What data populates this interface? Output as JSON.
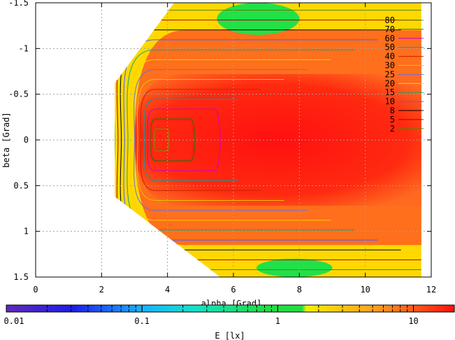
{
  "chart_data": {
    "type": "heatmap",
    "title": "",
    "xlabel": "alpha [Grad]",
    "ylabel": "beta [Grad]",
    "xlim": [
      0,
      12
    ],
    "ylim": [
      -1.5,
      1.5
    ],
    "y_inverted": true,
    "x_ticks": [
      0,
      2,
      4,
      6,
      8,
      10,
      12
    ],
    "x_tick_labels": [
      "0",
      "2",
      "4",
      "6",
      "8",
      "10",
      "12"
    ],
    "y_ticks": [
      -1.5,
      -1,
      -0.5,
      0,
      0.5,
      1,
      1.5
    ],
    "y_tick_labels": [
      "-1.5",
      "-1",
      "-0.5",
      "0",
      "0.5",
      "1",
      "1.5"
    ],
    "grid": true,
    "contour_levels": [
      80,
      70,
      60,
      50,
      40,
      30,
      25,
      20,
      15,
      10,
      8,
      5,
      2
    ],
    "contour_labels": [
      "80",
      "70",
      "60",
      "50",
      "40",
      "30",
      "25",
      "20",
      "15",
      "10",
      "8",
      "5",
      "2"
    ],
    "contour_colors": [
      "#7b9000",
      "#0a7a0a",
      "#cc00cc",
      "#00a0a0",
      "#cc2200",
      "#e8c000",
      "#7070d0",
      "#ffd000",
      "#20a060",
      "#4060ff",
      "#000000",
      "#b00000",
      "#608000"
    ],
    "legend_placement": "top-right",
    "colorbar": {
      "label": "E [lx]",
      "scale": "log",
      "range": [
        0.01,
        20
      ],
      "tick_labels": [
        "0.01",
        "0.1",
        "1",
        "10"
      ],
      "tick_values": [
        0.01,
        0.1,
        1,
        10
      ]
    },
    "region_outline": [
      [
        2.4,
        -0.62
      ],
      [
        4.2,
        -1.5
      ],
      [
        11.7,
        -1.5
      ],
      [
        11.7,
        1.5
      ],
      [
        5.6,
        1.5
      ],
      [
        2.4,
        0.62
      ]
    ],
    "field_regions": [
      {
        "level": "yellow",
        "x_range": [
          2.4,
          11.7
        ],
        "y_range": [
          -1.5,
          1.5
        ]
      },
      {
        "level": "orange",
        "x_range": [
          3.0,
          11.7
        ],
        "y_range": [
          -1.2,
          1.15
        ]
      },
      {
        "level": "red",
        "x_range": [
          3.0,
          11.7
        ],
        "y_range": [
          -0.72,
          0.72
        ]
      },
      {
        "level": "green",
        "x_range": [
          5.5,
          8.0
        ],
        "y_range": [
          -1.5,
          -1.15
        ]
      },
      {
        "level": "green",
        "x_range": [
          6.7,
          9.0
        ],
        "y_range": [
          1.3,
          1.5
        ]
      }
    ]
  }
}
